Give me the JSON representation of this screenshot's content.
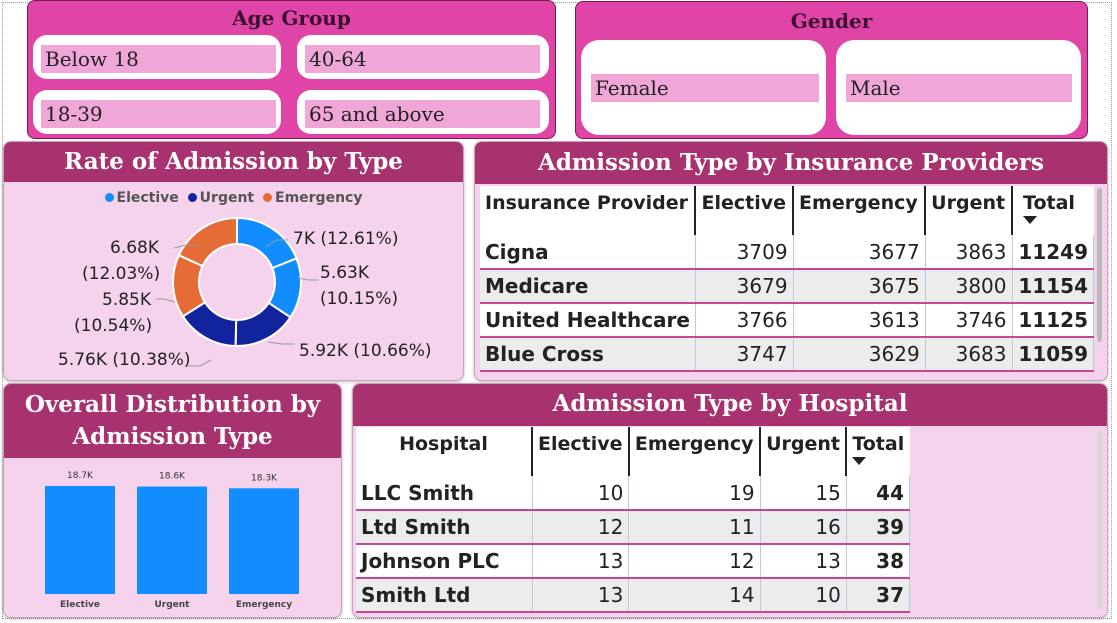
{
  "age_slicer": {
    "title": "Age Group",
    "options": [
      "Below 18",
      "40-64",
      "18-39",
      "65 and above"
    ]
  },
  "gender_slicer": {
    "title": "Gender",
    "options": [
      "Female",
      "Male"
    ]
  },
  "donut_visual": {
    "title": "Rate of Admission by Type",
    "legend": [
      {
        "label": "Elective",
        "color": "#118dff"
      },
      {
        "label": "Urgent",
        "color": "#12239e"
      },
      {
        "label": "Emergency",
        "color": "#e66c37"
      }
    ],
    "labels": {
      "a1": "7K (12.61%)",
      "b1": "5.63K",
      "b2": "(10.15%)",
      "c1": "5.92K (10.66%)",
      "d1": "5.76K (10.38%)",
      "e1": "5.85K",
      "e2": "(10.54%)",
      "f1": "6.68K",
      "f2": "(12.03%)"
    }
  },
  "bar_visual": {
    "title_line1": "Overall Distribution by",
    "title_line2": "Admission Type"
  },
  "insurance_table": {
    "title": "Admission Type by Insurance Providers",
    "headers": [
      "Insurance Provider",
      "Elective",
      "Emergency",
      "Urgent",
      "Total"
    ],
    "rows": [
      [
        "Cigna",
        "3709",
        "3677",
        "3863",
        "11249"
      ],
      [
        "Medicare",
        "3679",
        "3675",
        "3800",
        "11154"
      ],
      [
        "United Healthcare",
        "3766",
        "3613",
        "3746",
        "11125"
      ],
      [
        "Blue Cross",
        "3747",
        "3629",
        "3683",
        "11059"
      ]
    ]
  },
  "hospital_table": {
    "title": "Admission Type by Hospital",
    "headers": [
      "Hospital",
      "Elective",
      "Emergency",
      "Urgent",
      "Total"
    ],
    "rows": [
      [
        "LLC Smith",
        "10",
        "19",
        "15",
        "44"
      ],
      [
        "Ltd Smith",
        "12",
        "11",
        "16",
        "39"
      ],
      [
        "Johnson PLC",
        "13",
        "12",
        "13",
        "38"
      ],
      [
        "Smith Ltd",
        "13",
        "14",
        "10",
        "37"
      ]
    ]
  },
  "chart_data": [
    {
      "type": "pie",
      "title": "Rate of Admission by Type",
      "hole": true,
      "legend_position": "top",
      "slices": [
        {
          "label": "7K (12.61%)",
          "value": 7000,
          "percent": 12.61,
          "color": "#118dff"
        },
        {
          "label": "5.63K (10.15%)",
          "value": 5630,
          "percent": 10.15,
          "color": "#118dff"
        },
        {
          "label": "5.92K (10.66%)",
          "value": 5920,
          "percent": 10.66,
          "color": "#12239e"
        },
        {
          "label": "5.76K (10.38%)",
          "value": 5760,
          "percent": 10.38,
          "color": "#12239e"
        },
        {
          "label": "5.85K (10.54%)",
          "value": 5850,
          "percent": 10.54,
          "color": "#e66c37"
        },
        {
          "label": "6.68K (12.03%)",
          "value": 6680,
          "percent": 12.03,
          "color": "#e66c37"
        }
      ]
    },
    {
      "type": "bar",
      "title": "Overall Distribution by Admission Type",
      "categories": [
        "Elective",
        "Urgent",
        "Emergency"
      ],
      "values": [
        18700,
        18600,
        18300
      ],
      "data_labels": [
        "18.7K",
        "18.6K",
        "18.3K"
      ],
      "color": "#118dff",
      "ylim": [
        0,
        18700
      ],
      "grid": false
    }
  ]
}
